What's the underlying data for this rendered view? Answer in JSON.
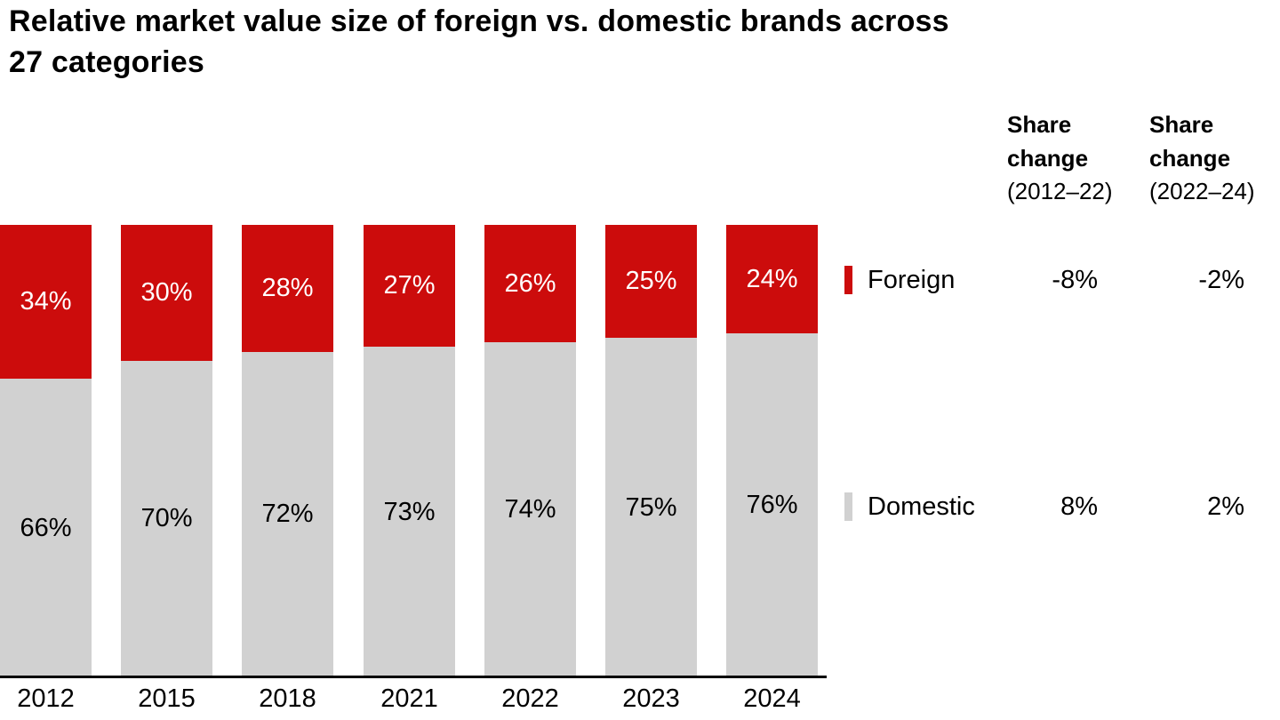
{
  "title": {
    "line1": "Relative market value size of foreign vs. domestic brands across",
    "line2": "27 categories"
  },
  "columns": [
    {
      "header_line1": "Share",
      "header_line2": "change",
      "subheader": "(2012–22)"
    },
    {
      "header_line1": "Share",
      "header_line2": "change",
      "subheader": "(2022–24)"
    }
  ],
  "legend": [
    {
      "label": "Foreign",
      "color": "#cc0c0c",
      "change_2012_22": "-8%",
      "change_2022_24": "-2%"
    },
    {
      "label": "Domestic",
      "color": "#d1d1d1",
      "change_2012_22": "8%",
      "change_2022_24": "2%"
    }
  ],
  "chart_data": {
    "type": "bar",
    "stacked": true,
    "orientation": "vertical",
    "title": "Relative market value size of foreign vs. domestic brands across 27 categories",
    "categories": [
      "2012",
      "2015",
      "2018",
      "2021",
      "2022",
      "2023",
      "2024"
    ],
    "series": [
      {
        "name": "Foreign",
        "color": "#cc0c0c",
        "values": [
          34,
          30,
          28,
          27,
          26,
          25,
          24
        ]
      },
      {
        "name": "Domestic",
        "color": "#d1d1d1",
        "values": [
          66,
          70,
          72,
          73,
          74,
          75,
          76
        ]
      }
    ],
    "value_suffix": "%",
    "ylim": [
      0,
      100
    ],
    "grid": false,
    "legend_position": "right",
    "xlabel": "",
    "ylabel": ""
  }
}
